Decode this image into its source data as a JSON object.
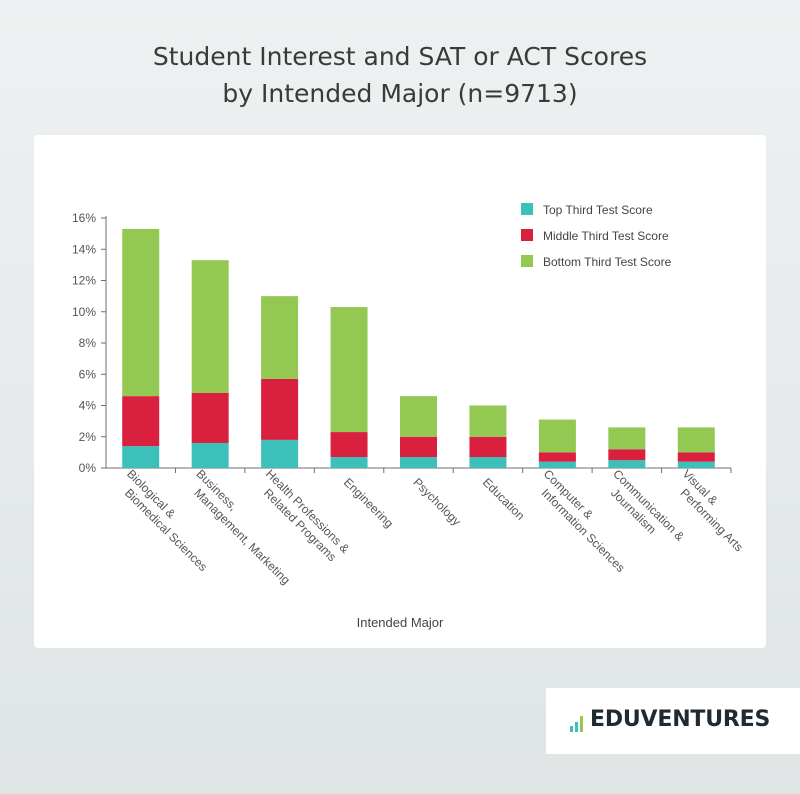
{
  "title_lines": [
    "Student Interest and SAT or ACT Scores",
    "by Intended Major (n=9713)"
  ],
  "brand": {
    "name": "EDUVENTURES"
  },
  "colors": {
    "top": "#3dc0b9",
    "middle": "#d9203f",
    "bottom": "#93c952",
    "axis": "#6f6f6f",
    "text": "#555555"
  },
  "chart_data": {
    "type": "bar",
    "stacked": true,
    "title": "Student Interest and SAT or ACT Scores by Intended Major (n=9713)",
    "xlabel": "Intended Major",
    "ylabel": "",
    "ylim": [
      0,
      16
    ],
    "yticks": [
      "0%",
      "2%",
      "4%",
      "6%",
      "8%",
      "10%",
      "12%",
      "14%",
      "16%"
    ],
    "grid": false,
    "legend_position": "top-right",
    "categories": [
      [
        "Biological &",
        "Biomedical Sciences"
      ],
      [
        "Business,",
        "Management, Marketing"
      ],
      [
        "Health Professions &",
        "Related Programs"
      ],
      [
        "Engineering"
      ],
      [
        "Psychology"
      ],
      [
        "Education"
      ],
      [
        "Computer &",
        "Information Sciences"
      ],
      [
        "Communication &",
        "Journalism"
      ],
      [
        "Visual &",
        "Performing Arts"
      ]
    ],
    "series": [
      {
        "name": "Top Third Test Score",
        "color": "#3dc0b9",
        "values": [
          1.4,
          1.6,
          1.8,
          0.7,
          0.7,
          0.7,
          0.4,
          0.5,
          0.4
        ]
      },
      {
        "name": "Middle Third Test Score",
        "color": "#d9203f",
        "values": [
          3.2,
          3.2,
          3.9,
          1.6,
          1.3,
          1.3,
          0.6,
          0.7,
          0.6
        ]
      },
      {
        "name": "Bottom Third Test Score",
        "color": "#93c952",
        "values": [
          10.7,
          8.5,
          5.3,
          8.0,
          2.6,
          2.0,
          2.1,
          1.4,
          1.6
        ]
      }
    ]
  }
}
